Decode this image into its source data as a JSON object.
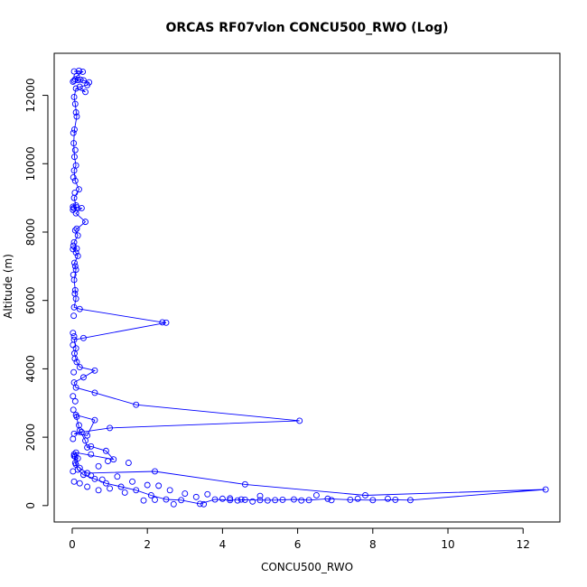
{
  "chart_data": {
    "type": "line",
    "title": "ORCAS RF07vlon CONCU500_RWO (Log)",
    "xlabel": "CONCU500_RWO",
    "ylabel": "Altitude (m)",
    "xlim": [
      -0.48,
      12.98
    ],
    "ylim": [
      -480,
      13230
    ],
    "xticks": [
      0,
      2,
      4,
      6,
      8,
      10,
      12
    ],
    "xtick_labels": [
      "0",
      "2",
      "4",
      "6",
      "8",
      "10",
      "12"
    ],
    "yticks": [
      0,
      2000,
      4000,
      6000,
      8000,
      10000,
      12000
    ],
    "ytick_labels": [
      "0",
      "2000",
      "4000",
      "6000",
      "8000",
      "10000",
      "12000"
    ],
    "grid": false,
    "color": "#0000ff",
    "marker": "open-circle",
    "series": [
      {
        "points": [
          [
            0.18,
            12720
          ],
          [
            0.05,
            12700
          ],
          [
            0.28,
            12690
          ],
          [
            0.12,
            12560
          ],
          [
            0.08,
            12470
          ],
          [
            0.15,
            12450
          ],
          [
            0.3,
            12440
          ],
          [
            0.45,
            12380
          ],
          [
            0.4,
            12300
          ],
          [
            0.2,
            12250
          ],
          [
            0.35,
            12100
          ],
          [
            0.1,
            12200
          ],
          [
            0.05,
            11950
          ],
          [
            0.08,
            11750
          ],
          [
            0.12,
            11380
          ],
          [
            0.06,
            11000
          ],
          [
            0.04,
            10600
          ],
          [
            0.06,
            10200
          ],
          [
            0.1,
            9950
          ],
          [
            0.05,
            9800
          ],
          [
            0.08,
            9500
          ],
          [
            0.18,
            9250
          ],
          [
            0.05,
            9000
          ],
          [
            0.1,
            8780
          ],
          [
            0.02,
            8740
          ],
          [
            0.12,
            8720
          ],
          [
            0.25,
            8700
          ],
          [
            0.1,
            8550
          ],
          [
            0.35,
            8300
          ],
          [
            0.08,
            8050
          ],
          [
            0.15,
            7900
          ],
          [
            0.05,
            7700
          ],
          [
            0.12,
            7520
          ],
          [
            0.02,
            7500
          ],
          [
            0.1,
            7400
          ],
          [
            0.15,
            7300
          ],
          [
            0.06,
            7100
          ],
          [
            0.1,
            6900
          ],
          [
            0.05,
            6600
          ],
          [
            0.08,
            6300
          ],
          [
            0.1,
            6050
          ],
          [
            0.05,
            5800
          ],
          [
            0.2,
            5750
          ],
          [
            2.4,
            5360
          ],
          [
            2.5,
            5350
          ],
          [
            0.3,
            4900
          ],
          [
            0.05,
            4850
          ],
          [
            0.1,
            4600
          ],
          [
            0.06,
            4450
          ],
          [
            0.12,
            4200
          ],
          [
            0.2,
            4050
          ],
          [
            0.6,
            3950
          ],
          [
            0.3,
            3750
          ],
          [
            0.05,
            3600
          ],
          [
            0.1,
            3450
          ],
          [
            0.6,
            3300
          ],
          [
            1.7,
            2950
          ],
          [
            6.05,
            2480
          ],
          [
            1.0,
            2270
          ],
          [
            0.25,
            2150
          ],
          [
            0.05,
            2100
          ],
          [
            0.4,
            2050
          ],
          [
            0.6,
            2500
          ],
          [
            0.1,
            2650
          ],
          [
            0.2,
            2200
          ],
          [
            0.35,
            1900
          ],
          [
            0.4,
            1700
          ],
          [
            0.5,
            1730
          ],
          [
            0.9,
            1600
          ],
          [
            1.1,
            1350
          ],
          [
            0.1,
            1550
          ],
          [
            0.05,
            1500
          ],
          [
            0.08,
            1430
          ],
          [
            0.15,
            1380
          ],
          [
            0.1,
            1200
          ],
          [
            0.2,
            1100
          ],
          [
            0.4,
            950
          ],
          [
            2.2,
            1000
          ],
          [
            4.6,
            620
          ],
          [
            7.8,
            300
          ],
          [
            12.6,
            470
          ],
          [
            9.0,
            160
          ],
          [
            8.6,
            170
          ],
          [
            8.0,
            160
          ],
          [
            7.4,
            170
          ],
          [
            6.8,
            200
          ],
          [
            6.3,
            160
          ],
          [
            5.9,
            180
          ],
          [
            5.4,
            160
          ],
          [
            5.0,
            160
          ],
          [
            4.6,
            170
          ],
          [
            4.2,
            160
          ],
          [
            3.8,
            180
          ],
          [
            3.4,
            50
          ],
          [
            2.9,
            160
          ],
          [
            2.5,
            180
          ],
          [
            2.1,
            300
          ],
          [
            1.7,
            450
          ],
          [
            1.3,
            550
          ],
          [
            0.9,
            650
          ],
          [
            0.6,
            780
          ],
          [
            0.3,
            900
          ],
          [
            0.15,
            1050
          ],
          [
            0.08,
            1250
          ],
          [
            0.05,
            1450
          ]
        ]
      }
    ],
    "extra_points": [
      [
        0.02,
        12400
      ],
      [
        0.05,
        12430
      ],
      [
        0.22,
        12460
      ],
      [
        0.1,
        11500
      ],
      [
        0.03,
        10900
      ],
      [
        0.08,
        10400
      ],
      [
        0.03,
        9600
      ],
      [
        0.07,
        9150
      ],
      [
        0.02,
        8650
      ],
      [
        0.04,
        8700
      ],
      [
        0.12,
        8100
      ],
      [
        0.03,
        7600
      ],
      [
        0.08,
        7000
      ],
      [
        0.03,
        6750
      ],
      [
        0.07,
        6200
      ],
      [
        0.04,
        5550
      ],
      [
        0.02,
        5050
      ],
      [
        0.05,
        4950
      ],
      [
        0.02,
        4700
      ],
      [
        0.07,
        4300
      ],
      [
        0.04,
        3900
      ],
      [
        0.02,
        3200
      ],
      [
        0.08,
        3050
      ],
      [
        0.03,
        2800
      ],
      [
        0.12,
        2600
      ],
      [
        0.18,
        2350
      ],
      [
        0.02,
        1950
      ],
      [
        0.5,
        1500
      ],
      [
        0.7,
        1150
      ],
      [
        1.5,
        1250
      ],
      [
        0.95,
        1300
      ],
      [
        1.2,
        850
      ],
      [
        1.6,
        700
      ],
      [
        2.0,
        600
      ],
      [
        2.3,
        580
      ],
      [
        2.6,
        450
      ],
      [
        3.0,
        350
      ],
      [
        3.3,
        250
      ],
      [
        3.6,
        330
      ],
      [
        4.0,
        200
      ],
      [
        4.4,
        150
      ],
      [
        4.8,
        120
      ],
      [
        5.2,
        150
      ],
      [
        5.6,
        170
      ],
      [
        6.1,
        150
      ],
      [
        6.5,
        300
      ],
      [
        6.9,
        160
      ],
      [
        7.6,
        200
      ],
      [
        8.4,
        200
      ],
      [
        3.5,
        40
      ],
      [
        2.7,
        40
      ],
      [
        1.9,
        150
      ],
      [
        2.2,
        170
      ],
      [
        4.2,
        210
      ],
      [
        4.5,
        180
      ],
      [
        5.0,
        280
      ],
      [
        0.7,
        450
      ],
      [
        0.4,
        550
      ],
      [
        0.2,
        650
      ],
      [
        0.5,
        880
      ],
      [
        0.8,
        760
      ],
      [
        1.0,
        500
      ],
      [
        1.4,
        380
      ],
      [
        0.05,
        700
      ],
      [
        0.02,
        1000
      ]
    ]
  }
}
